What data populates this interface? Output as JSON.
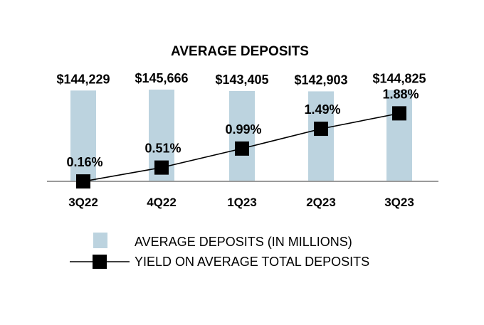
{
  "chart_data": {
    "type": "bar",
    "title": "AVERAGE DEPOSITS",
    "categories": [
      "3Q22",
      "4Q22",
      "1Q23",
      "2Q23",
      "3Q23"
    ],
    "series": [
      {
        "name": "AVERAGE DEPOSITS (IN MILLIONS)",
        "type": "bar",
        "values": [
          144229,
          145666,
          143405,
          142903,
          144825
        ],
        "labels": [
          "$144,229",
          "$145,666",
          "$143,405",
          "$142,903",
          "$144,825"
        ],
        "color": "#bcd3df"
      },
      {
        "name": "YIELD ON AVERAGE TOTAL DEPOSITS",
        "type": "line",
        "values": [
          0.16,
          0.51,
          0.99,
          1.49,
          1.88
        ],
        "labels": [
          "0.16%",
          "0.51%",
          "0.99%",
          "1.49%",
          "1.88%"
        ],
        "color": "#000000"
      }
    ],
    "bar_axis_range": [
      0,
      145666
    ],
    "yield_axis_range": [
      0,
      2.3
    ],
    "grid": false,
    "legend_position": "bottom"
  }
}
